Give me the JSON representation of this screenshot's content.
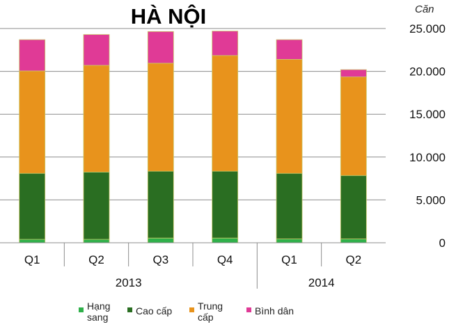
{
  "chart_data": {
    "type": "bar",
    "stacked": true,
    "title": "HÀ NỘI",
    "unit_label": "Căn",
    "categories": [
      "Q1",
      "Q2",
      "Q3",
      "Q4",
      "Q1",
      "Q2"
    ],
    "groups": [
      {
        "label": "2013",
        "count": 4
      },
      {
        "label": "2014",
        "count": 2
      }
    ],
    "ylim": [
      0,
      25000
    ],
    "yticks": [
      "0",
      "5.000",
      "10.000",
      "15.000",
      "20.000",
      "25.000"
    ],
    "ytick_values": [
      0,
      5000,
      10000,
      15000,
      20000,
      25000
    ],
    "y_axis_side": "right",
    "grid": true,
    "legend_position": "bottom",
    "series": [
      {
        "name": "Hạng sang",
        "legend_lines": [
          "Hạng",
          "sang"
        ],
        "color": "#2fb04a",
        "values": [
          400,
          400,
          550,
          550,
          450,
          450
        ]
      },
      {
        "name": "Cao cấp",
        "legend_lines": [
          "Cao cấp"
        ],
        "color": "#2a6e22",
        "values": [
          7700,
          7850,
          7800,
          7800,
          7650,
          7400
        ]
      },
      {
        "name": "Trung cấp",
        "legend_lines": [
          "Trung",
          "cấp"
        ],
        "color": "#e8931c",
        "values": [
          11950,
          12450,
          12600,
          13500,
          13300,
          11500
        ]
      },
      {
        "name": "Bình dân",
        "legend_lines": [
          "Bình dân"
        ],
        "color": "#e03a96",
        "values": [
          3650,
          3600,
          3700,
          2850,
          2300,
          850
        ]
      }
    ]
  }
}
